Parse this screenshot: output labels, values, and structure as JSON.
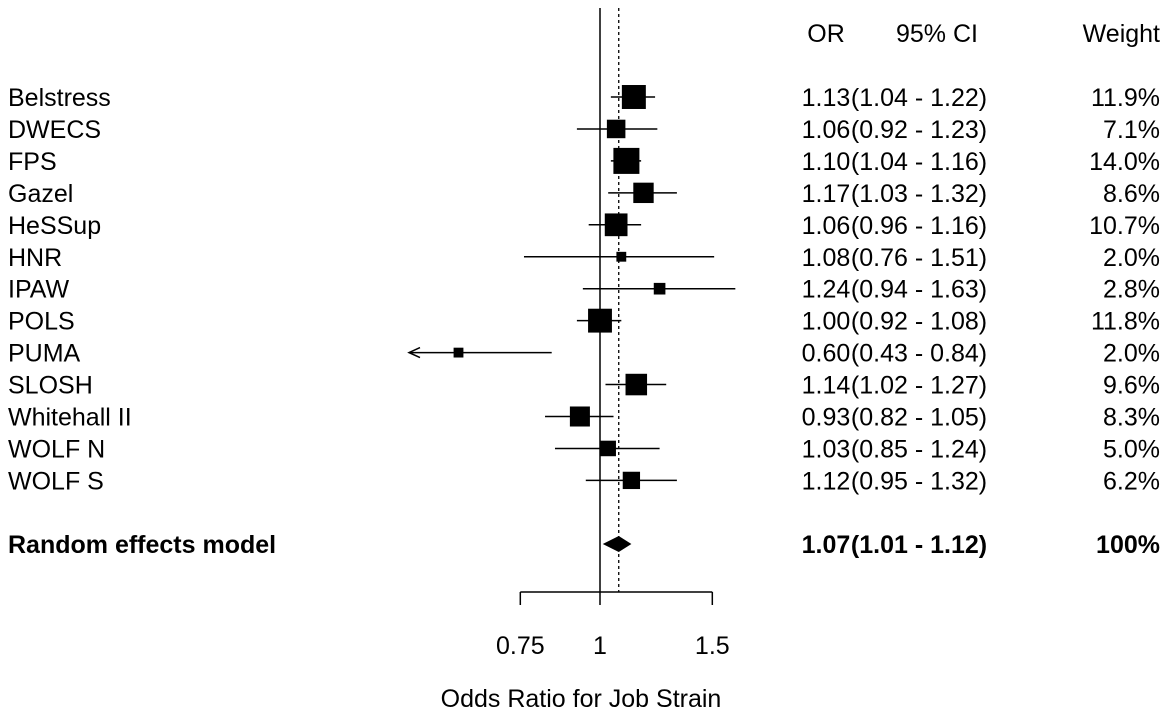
{
  "chart_data": {
    "type": "forest",
    "xlabel": "Odds Ratio for Job Strain",
    "x_scale": "log",
    "xlim": [
      0.75,
      1.5
    ],
    "xticks": [
      0.75,
      1,
      1.5
    ],
    "xtick_labels": [
      "0.75",
      "1",
      "1.5"
    ],
    "reference_line": 1,
    "summary_line": 1.07,
    "columns": {
      "or": "OR",
      "ci": "95% CI",
      "weight": "Weight"
    },
    "studies": [
      {
        "name": "Belstress",
        "or": 1.13,
        "lo": 1.04,
        "hi": 1.22,
        "weight": 11.9,
        "or_text": "1.13",
        "ci_text": "(1.04 - 1.22)",
        "weight_text": "11.9%"
      },
      {
        "name": "DWECS",
        "or": 1.06,
        "lo": 0.92,
        "hi": 1.23,
        "weight": 7.1,
        "or_text": "1.06",
        "ci_text": "(0.92 - 1.23)",
        "weight_text": "7.1%"
      },
      {
        "name": "FPS",
        "or": 1.1,
        "lo": 1.04,
        "hi": 1.16,
        "weight": 14.0,
        "or_text": "1.10",
        "ci_text": "(1.04 - 1.16)",
        "weight_text": "14.0%"
      },
      {
        "name": "Gazel",
        "or": 1.17,
        "lo": 1.03,
        "hi": 1.32,
        "weight": 8.6,
        "or_text": "1.17",
        "ci_text": "(1.03 - 1.32)",
        "weight_text": "8.6%"
      },
      {
        "name": "HeSSup",
        "or": 1.06,
        "lo": 0.96,
        "hi": 1.16,
        "weight": 10.7,
        "or_text": "1.06",
        "ci_text": "(0.96 - 1.16)",
        "weight_text": "10.7%"
      },
      {
        "name": "HNR",
        "or": 1.08,
        "lo": 0.76,
        "hi": 1.51,
        "weight": 2.0,
        "or_text": "1.08",
        "ci_text": "(0.76 - 1.51)",
        "weight_text": "2.0%"
      },
      {
        "name": "IPAW",
        "or": 1.24,
        "lo": 0.94,
        "hi": 1.63,
        "weight": 2.8,
        "or_text": "1.24",
        "ci_text": "(0.94 - 1.63)",
        "weight_text": "2.8%"
      },
      {
        "name": "POLS",
        "or": 1.0,
        "lo": 0.92,
        "hi": 1.08,
        "weight": 11.8,
        "or_text": "1.00",
        "ci_text": "(0.92 - 1.08)",
        "weight_text": "11.8%"
      },
      {
        "name": "PUMA",
        "or": 0.6,
        "lo": 0.43,
        "hi": 0.84,
        "weight": 2.0,
        "or_text": "0.60",
        "ci_text": "(0.43 - 0.84)",
        "weight_text": "2.0%"
      },
      {
        "name": "SLOSH",
        "or": 1.14,
        "lo": 1.02,
        "hi": 1.27,
        "weight": 9.6,
        "or_text": "1.14",
        "ci_text": "(1.02 - 1.27)",
        "weight_text": "9.6%"
      },
      {
        "name": "Whitehall II",
        "or": 0.93,
        "lo": 0.82,
        "hi": 1.05,
        "weight": 8.3,
        "or_text": "0.93",
        "ci_text": "(0.82 - 1.05)",
        "weight_text": "8.3%"
      },
      {
        "name": "WOLF N",
        "or": 1.03,
        "lo": 0.85,
        "hi": 1.24,
        "weight": 5.0,
        "or_text": "1.03",
        "ci_text": "(0.85 - 1.24)",
        "weight_text": "5.0%"
      },
      {
        "name": "WOLF S",
        "or": 1.12,
        "lo": 0.95,
        "hi": 1.32,
        "weight": 6.2,
        "or_text": "1.12",
        "ci_text": "(0.95 - 1.32)",
        "weight_text": "6.2%"
      }
    ],
    "summary": {
      "name": "Random effects model",
      "or": 1.07,
      "lo": 1.01,
      "hi": 1.12,
      "or_text": "1.07",
      "ci_text": "(1.01 - 1.12)",
      "weight_text": "100%"
    },
    "colors": {
      "ink": "#000000",
      "background": "#ffffff"
    }
  }
}
